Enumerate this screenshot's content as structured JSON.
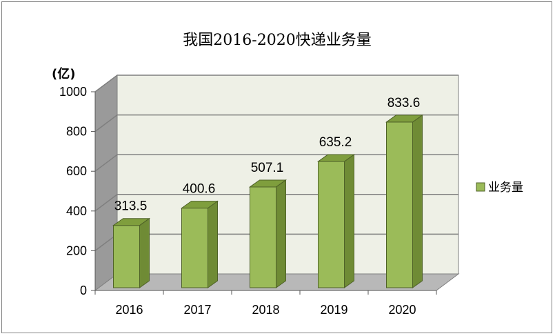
{
  "chart_data": {
    "type": "bar",
    "title": "我国2016-2020快递业务量",
    "unit_label": "(亿)",
    "categories": [
      "2016",
      "2017",
      "2018",
      "2019",
      "2020"
    ],
    "series": [
      {
        "name": "业务量",
        "values": [
          313.5,
          400.6,
          507.1,
          635.2,
          833.6
        ]
      }
    ],
    "data_labels": [
      "313.5",
      "400.6",
      "507.1",
      "635.2",
      "833.6"
    ],
    "y_ticks": [
      "0",
      "200",
      "400",
      "600",
      "800",
      "1000"
    ],
    "ylim": [
      0,
      1000
    ],
    "grid": true,
    "legend_position": "right",
    "colors": {
      "bar_front": "#9bbb59",
      "bar_side": "#6f8b35",
      "bar_top": "#7f9e3d",
      "bar_edge": "#4f6228",
      "back_wall": "#eef0e6",
      "side_wall": "#9a9a9a",
      "floor": "#b8b8b8",
      "gridline": "#7f7f7f"
    }
  }
}
